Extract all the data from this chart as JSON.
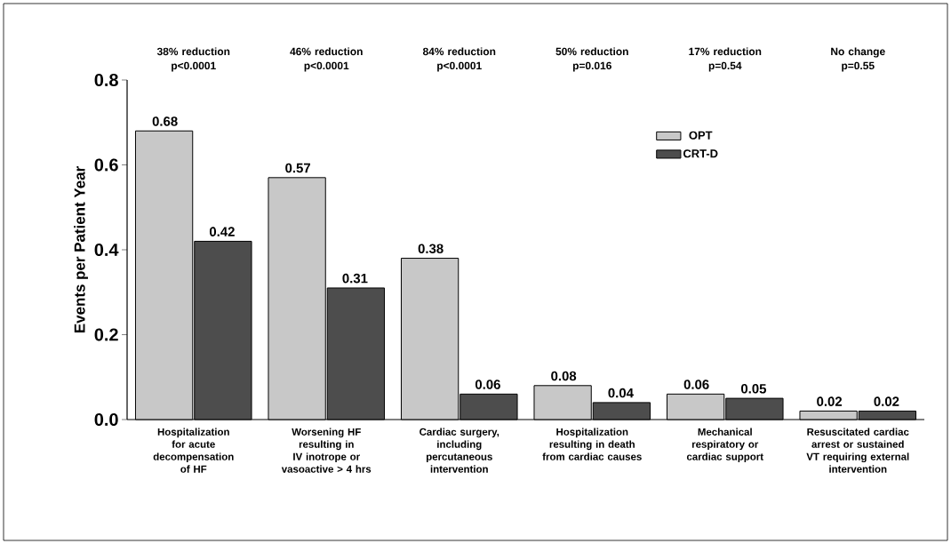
{
  "chart_data": {
    "type": "bar",
    "ylabel": "Events per Patient Year",
    "categories": [
      "Hospitalization for acute decompensation of HF",
      "Worsening HF resulting in IV inotrope or vasoactive > 4 hrs",
      "Cardiac surgery, including percutaneous intervention",
      "Hospitalization resulting in death from cardiac causes",
      "Mechanical respiratory or cardiac support",
      "Resuscitated cardiac arrest or sustained VT requiring external intervention"
    ],
    "series": [
      {
        "name": "OPT",
        "color": "#c8c8c8",
        "values": [
          0.68,
          0.57,
          0.38,
          0.08,
          0.06,
          0.02
        ]
      },
      {
        "name": "CRT-D",
        "color": "#4d4d4d",
        "values": [
          0.42,
          0.31,
          0.06,
          0.04,
          0.05,
          0.02
        ]
      }
    ],
    "ylim": [
      0,
      0.8
    ],
    "yticks": [
      {
        "value": 0,
        "label": "0.0"
      },
      0.2,
      0.4,
      0.6,
      0.8
    ],
    "annotations": [
      "38% reduction p<0.0001",
      "46% reduction p<0.0001",
      "84% reduction p<0.0001",
      "50% reduction p=0.016",
      "17% reduction p=0.54",
      "No change p=0.55"
    ],
    "data_labels": true,
    "legend": "top right",
    "grid": false
  }
}
